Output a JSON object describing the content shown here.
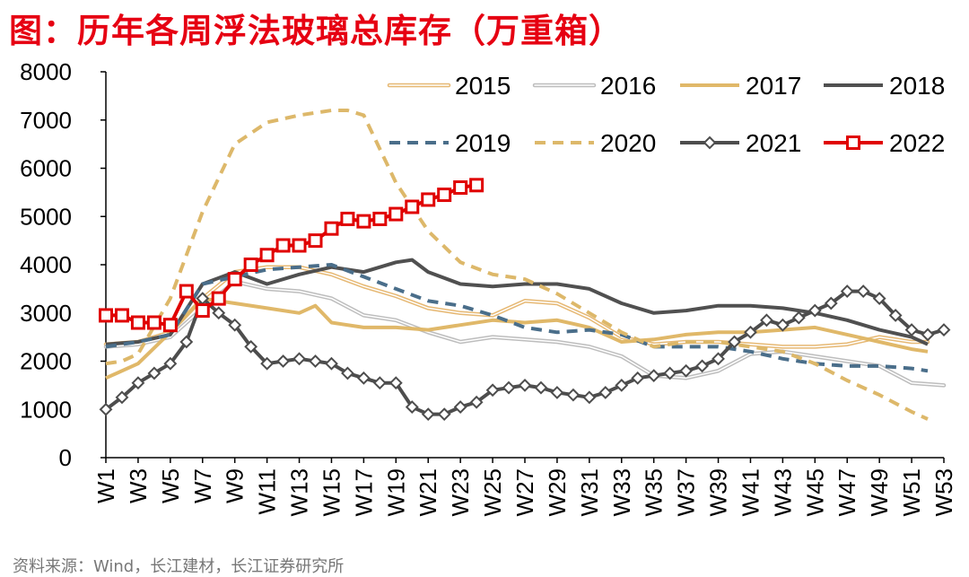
{
  "title": "图：历年各周浮法玻璃总库存（万重箱）",
  "source": "资料来源：Wind，长江建材，长江证券研究所",
  "chart_data": {
    "type": "line",
    "title": "图：历年各周浮法玻璃总库存（万重箱）",
    "xlabel": "",
    "ylabel": "",
    "ylim": [
      0,
      8000
    ],
    "yticks": [
      0,
      1000,
      2000,
      3000,
      4000,
      5000,
      6000,
      7000,
      8000
    ],
    "xtick_labels": [
      "W1",
      "W3",
      "W5",
      "W7",
      "W9",
      "W11",
      "W13",
      "W15",
      "W17",
      "W19",
      "W21",
      "W23",
      "W25",
      "W27",
      "W29",
      "W31",
      "W33",
      "W35",
      "W37",
      "W39",
      "W41",
      "W43",
      "W45",
      "W47",
      "W49",
      "W51",
      "W53"
    ],
    "week_range": [
      1,
      53
    ],
    "legend_position": "top-right",
    "series": [
      {
        "name": "2015",
        "color": "#E6B873",
        "style": "double",
        "marker": "none",
        "weeks": [
          1,
          3,
          5,
          7,
          9,
          11,
          13,
          15,
          17,
          19,
          21,
          23,
          25,
          27,
          29,
          31,
          33,
          35,
          37,
          39,
          41,
          43,
          45,
          47,
          49,
          51,
          52
        ],
        "values": [
          2350,
          2400,
          2600,
          3300,
          3850,
          3950,
          3950,
          3800,
          3550,
          3350,
          3100,
          3000,
          2950,
          3250,
          3200,
          2900,
          2500,
          2350,
          2400,
          2400,
          2350,
          2300,
          2300,
          2350,
          2500,
          2400,
          2400
        ]
      },
      {
        "name": "2016",
        "color": "#BDBDBD",
        "style": "double",
        "marker": "none",
        "weeks": [
          1,
          3,
          5,
          7,
          9,
          11,
          13,
          15,
          17,
          19,
          21,
          23,
          25,
          27,
          29,
          31,
          33,
          35,
          37,
          39,
          41,
          43,
          45,
          47,
          49,
          51,
          53
        ],
        "values": [
          2300,
          2350,
          2500,
          3100,
          3650,
          3500,
          3450,
          3300,
          2950,
          2850,
          2600,
          2400,
          2500,
          2450,
          2400,
          2300,
          2100,
          1700,
          1650,
          1800,
          2150,
          2200,
          2100,
          2000,
          1900,
          1550,
          1500
        ]
      },
      {
        "name": "2017",
        "color": "#E0B869",
        "style": "solid",
        "marker": "none",
        "weeks": [
          1,
          3,
          5,
          7,
          9,
          11,
          13,
          14,
          15,
          17,
          19,
          21,
          23,
          25,
          27,
          29,
          31,
          33,
          35,
          37,
          39,
          41,
          43,
          45,
          47,
          49,
          51,
          52
        ],
        "values": [
          1650,
          1950,
          2600,
          3300,
          3200,
          3100,
          3000,
          3150,
          2800,
          2700,
          2700,
          2650,
          2750,
          2850,
          2800,
          2850,
          2700,
          2400,
          2450,
          2550,
          2600,
          2600,
          2650,
          2700,
          2550,
          2400,
          2250,
          2200
        ]
      },
      {
        "name": "2018",
        "color": "#505050",
        "style": "solid",
        "marker": "none",
        "weeks": [
          1,
          3,
          5,
          7,
          9,
          11,
          13,
          15,
          17,
          19,
          20,
          21,
          23,
          25,
          27,
          29,
          31,
          33,
          35,
          37,
          39,
          41,
          43,
          45,
          47,
          49,
          51,
          52
        ],
        "values": [
          2350,
          2400,
          2550,
          3600,
          3850,
          3600,
          3800,
          3950,
          3850,
          4050,
          4100,
          3850,
          3600,
          3550,
          3600,
          3600,
          3500,
          3200,
          3000,
          3050,
          3150,
          3150,
          3100,
          3000,
          2850,
          2650,
          2500,
          2350
        ]
      },
      {
        "name": "2019",
        "color": "#4A6E8A",
        "style": "dash",
        "marker": "none",
        "weeks": [
          1,
          3,
          5,
          7,
          9,
          11,
          13,
          15,
          17,
          19,
          21,
          23,
          25,
          27,
          29,
          31,
          33,
          35,
          37,
          39,
          41,
          43,
          45,
          47,
          49,
          51,
          52
        ],
        "values": [
          2300,
          2400,
          2550,
          3600,
          3750,
          3900,
          3950,
          4000,
          3750,
          3500,
          3250,
          3150,
          2950,
          2700,
          2600,
          2650,
          2550,
          2300,
          2300,
          2300,
          2200,
          2050,
          1950,
          1900,
          1900,
          1850,
          1800
        ]
      },
      {
        "name": "2020",
        "color": "#DDB86A",
        "style": "dash",
        "marker": "none",
        "weeks": [
          1,
          2,
          3,
          5,
          7,
          9,
          11,
          13,
          15,
          16,
          17,
          19,
          21,
          23,
          25,
          27,
          29,
          31,
          33,
          35,
          37,
          39,
          41,
          43,
          45,
          47,
          49,
          51,
          52
        ],
        "values": [
          1950,
          2000,
          2150,
          3300,
          5100,
          6500,
          6950,
          7100,
          7200,
          7200,
          7100,
          5700,
          4700,
          4050,
          3800,
          3700,
          3400,
          3000,
          2600,
          2300,
          2400,
          2400,
          2300,
          2200,
          1950,
          1600,
          1300,
          950,
          800
        ]
      },
      {
        "name": "2021",
        "color": "#4D4D4D",
        "style": "solid",
        "marker": "diamond",
        "weeks": [
          1,
          2,
          3,
          4,
          5,
          6,
          7,
          8,
          9,
          10,
          11,
          12,
          13,
          14,
          15,
          16,
          17,
          18,
          19,
          20,
          21,
          22,
          23,
          24,
          25,
          26,
          27,
          28,
          29,
          30,
          31,
          32,
          33,
          34,
          35,
          36,
          37,
          38,
          39,
          40,
          41,
          42,
          43,
          44,
          45,
          46,
          47,
          48,
          49,
          50,
          51,
          52,
          53
        ],
        "values": [
          1000,
          1250,
          1550,
          1750,
          1950,
          2400,
          3300,
          3000,
          2750,
          2300,
          1950,
          2000,
          2050,
          2000,
          1950,
          1750,
          1650,
          1550,
          1550,
          1050,
          900,
          900,
          1050,
          1150,
          1400,
          1450,
          1500,
          1450,
          1350,
          1300,
          1250,
          1350,
          1500,
          1650,
          1700,
          1750,
          1800,
          1900,
          2050,
          2400,
          2600,
          2850,
          2750,
          2900,
          3050,
          3200,
          3450,
          3450,
          3300,
          2950,
          2650,
          2550,
          2650
        ]
      },
      {
        "name": "2022",
        "color": "#E00000",
        "style": "solid",
        "marker": "square",
        "weeks": [
          1,
          2,
          3,
          4,
          5,
          6,
          7,
          8,
          9,
          10,
          11,
          12,
          13,
          14,
          15,
          16,
          17,
          18,
          19,
          20,
          21,
          22,
          23,
          24
        ],
        "values": [
          2950,
          2950,
          2800,
          2800,
          2750,
          3450,
          3050,
          3300,
          3700,
          4000,
          4200,
          4400,
          4400,
          4500,
          4750,
          4950,
          4900,
          4950,
          5050,
          5200,
          5350,
          5450,
          5600,
          5650
        ]
      }
    ]
  }
}
